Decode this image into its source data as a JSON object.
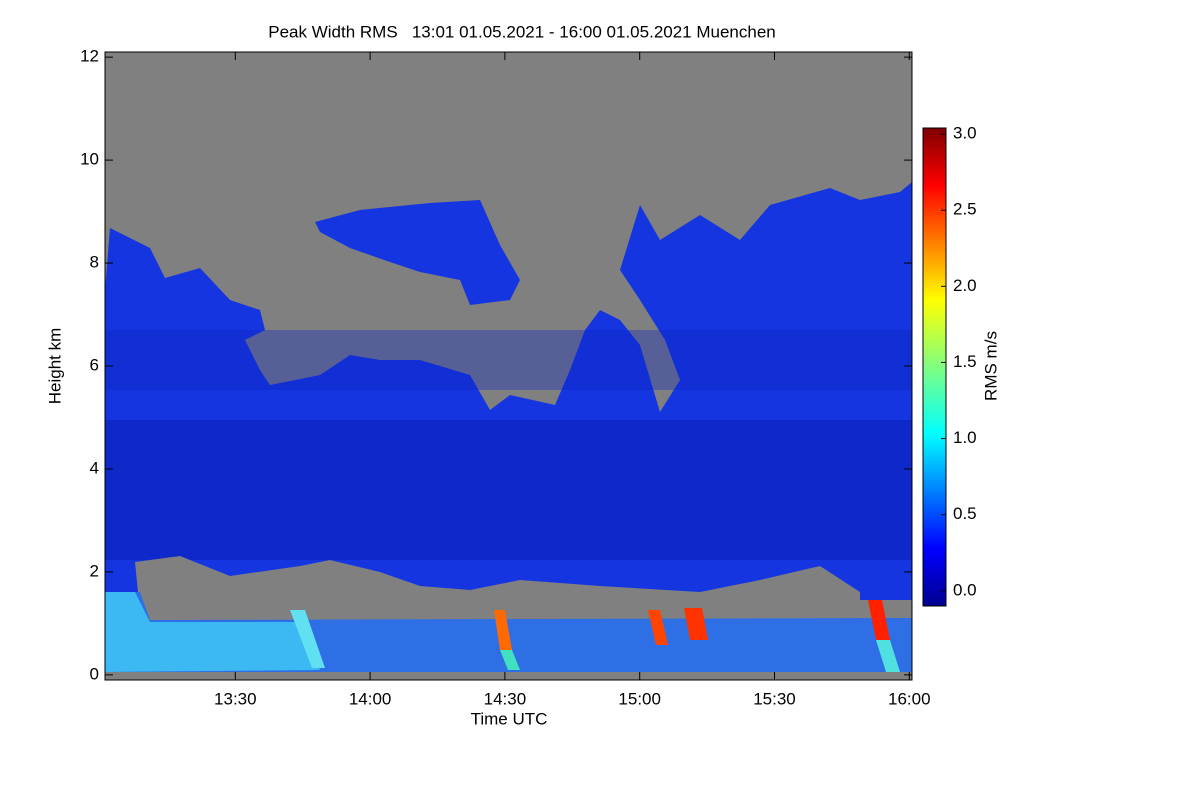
{
  "chart_data": {
    "type": "heatmap",
    "title": "Peak Width RMS   13:01 01.05.2021 - 16:00 01.05.2021 Muenchen",
    "xlabel": "Time UTC",
    "ylabel": "Height km",
    "xlim": [
      781,
      960.6
    ],
    "xticks": [
      {
        "value": 810,
        "label": "13:30"
      },
      {
        "value": 840,
        "label": "14:00"
      },
      {
        "value": 870,
        "label": "14:30"
      },
      {
        "value": 900,
        "label": "15:00"
      },
      {
        "value": 930,
        "label": "15:30"
      },
      {
        "value": 960,
        "label": "16:00"
      }
    ],
    "ylim": [
      -0.1,
      12.1
    ],
    "yticks": [
      0,
      2,
      4,
      6,
      8,
      10,
      12
    ],
    "colorbar": {
      "label": "RMS m/s",
      "lim": [
        -0.1,
        3.04
      ],
      "ticks": [
        {
          "value": 0,
          "label": "0.0"
        },
        {
          "value": 0.5,
          "label": "0.5"
        },
        {
          "value": 1,
          "label": "1.0"
        },
        {
          "value": 1.5,
          "label": "1.5"
        },
        {
          "value": 2,
          "label": "2.0"
        },
        {
          "value": 2.5,
          "label": "2.5"
        },
        {
          "value": 3,
          "label": "3.0"
        }
      ]
    }
  }
}
